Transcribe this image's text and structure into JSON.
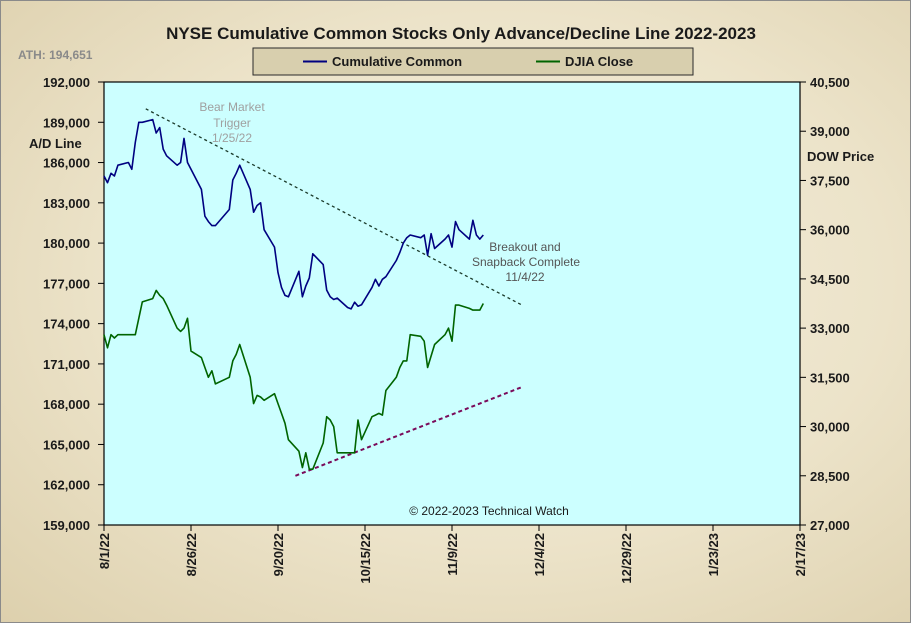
{
  "chart_data": {
    "type": "line",
    "title": "NYSE Cumulative  Common Stocks Only Advance/Decline  Line 2022-2023",
    "ath_label": "ATH: 194,651",
    "left_axis_label": [
      "A/D Line"
    ],
    "right_axis_label": "DOW Price",
    "copyright": "© 2022-2023  Technical Watch",
    "legend": {
      "placement": "top-center"
    },
    "x_ticks": [
      "8/1/22",
      "8/26/22",
      "9/20/22",
      "10/15/22",
      "11/9/22",
      "12/4/22",
      "12/29/22",
      "1/23/23",
      "2/17/23"
    ],
    "x_range": [
      "2022-08-01",
      "2023-02-17"
    ],
    "y_left_ticks": [
      "159,000",
      "162,000",
      "165,000",
      "168,000",
      "171,000",
      "174,000",
      "177,000",
      "180,000",
      "183,000",
      "186,000",
      "189,000",
      "192,000"
    ],
    "y_left_range": [
      159000,
      192000
    ],
    "y_right_ticks": [
      "27,000",
      "28,500",
      "30,000",
      "31,500",
      "33,000",
      "34,500",
      "36,000",
      "37,500",
      "39,000",
      "40,500"
    ],
    "y_right_range": [
      27000,
      40500
    ],
    "series": [
      {
        "name": "Cumulative Common",
        "axis": "left",
        "color": "#000080",
        "x": [
          "2022-08-01",
          "2022-08-02",
          "2022-08-03",
          "2022-08-04",
          "2022-08-05",
          "2022-08-08",
          "2022-08-09",
          "2022-08-10",
          "2022-08-11",
          "2022-08-12",
          "2022-08-15",
          "2022-08-16",
          "2022-08-17",
          "2022-08-18",
          "2022-08-19",
          "2022-08-22",
          "2022-08-23",
          "2022-08-24",
          "2022-08-25",
          "2022-08-26",
          "2022-08-29",
          "2022-08-30",
          "2022-08-31",
          "2022-09-01",
          "2022-09-02",
          "2022-09-06",
          "2022-09-07",
          "2022-09-08",
          "2022-09-09",
          "2022-09-12",
          "2022-09-13",
          "2022-09-14",
          "2022-09-15",
          "2022-09-16",
          "2022-09-19",
          "2022-09-20",
          "2022-09-21",
          "2022-09-22",
          "2022-09-23",
          "2022-09-26",
          "2022-09-27",
          "2022-09-28",
          "2022-09-29",
          "2022-09-30",
          "2022-10-03",
          "2022-10-04",
          "2022-10-05",
          "2022-10-06",
          "2022-10-07",
          "2022-10-10",
          "2022-10-11",
          "2022-10-12",
          "2022-10-13",
          "2022-10-14",
          "2022-10-17",
          "2022-10-18",
          "2022-10-19",
          "2022-10-20",
          "2022-10-21",
          "2022-10-24",
          "2022-10-25",
          "2022-10-26",
          "2022-10-27",
          "2022-10-28",
          "2022-10-31",
          "2022-11-01",
          "2022-11-02",
          "2022-11-03",
          "2022-11-04",
          "2022-11-07",
          "2022-11-08",
          "2022-11-09",
          "2022-11-10",
          "2022-11-11",
          "2022-11-14",
          "2022-11-15",
          "2022-11-16",
          "2022-11-17",
          "2022-11-18"
        ],
        "values": [
          185000,
          184500,
          185200,
          185000,
          185800,
          186000,
          185500,
          187500,
          189000,
          189000,
          189200,
          188200,
          188600,
          187000,
          186500,
          185800,
          186000,
          187800,
          186000,
          185500,
          184000,
          182000,
          181600,
          181300,
          181300,
          182500,
          184700,
          185200,
          185800,
          184000,
          182300,
          182800,
          183000,
          181000,
          179700,
          177800,
          176700,
          176100,
          176000,
          177900,
          176000,
          176800,
          177400,
          179200,
          178400,
          176500,
          176000,
          175800,
          175900,
          175200,
          175100,
          175600,
          175300,
          175400,
          176700,
          177300,
          176800,
          177300,
          177500,
          178700,
          179300,
          180000,
          180400,
          180600,
          180400,
          180600,
          179100,
          180700,
          179600,
          180300,
          180600,
          179700,
          181600,
          181000,
          180300,
          181700,
          180600,
          180300,
          180600
        ]
      },
      {
        "name": "DJIA Close",
        "axis": "right",
        "color": "#006400",
        "x": [
          "2022-08-01",
          "2022-08-02",
          "2022-08-03",
          "2022-08-04",
          "2022-08-05",
          "2022-08-08",
          "2022-08-09",
          "2022-08-10",
          "2022-08-11",
          "2022-08-12",
          "2022-08-15",
          "2022-08-16",
          "2022-08-17",
          "2022-08-18",
          "2022-08-19",
          "2022-08-22",
          "2022-08-23",
          "2022-08-24",
          "2022-08-25",
          "2022-08-26",
          "2022-08-29",
          "2022-08-30",
          "2022-08-31",
          "2022-09-01",
          "2022-09-02",
          "2022-09-06",
          "2022-09-07",
          "2022-09-08",
          "2022-09-09",
          "2022-09-12",
          "2022-09-13",
          "2022-09-14",
          "2022-09-15",
          "2022-09-16",
          "2022-09-19",
          "2022-09-20",
          "2022-09-21",
          "2022-09-22",
          "2022-09-23",
          "2022-09-26",
          "2022-09-27",
          "2022-09-28",
          "2022-09-29",
          "2022-09-30",
          "2022-10-03",
          "2022-10-04",
          "2022-10-05",
          "2022-10-06",
          "2022-10-07",
          "2022-10-10",
          "2022-10-11",
          "2022-10-12",
          "2022-10-13",
          "2022-10-14",
          "2022-10-17",
          "2022-10-18",
          "2022-10-19",
          "2022-10-20",
          "2022-10-21",
          "2022-10-24",
          "2022-10-25",
          "2022-10-26",
          "2022-10-27",
          "2022-10-28",
          "2022-10-31",
          "2022-11-01",
          "2022-11-02",
          "2022-11-03",
          "2022-11-04",
          "2022-11-07",
          "2022-11-08",
          "2022-11-09",
          "2022-11-10",
          "2022-11-11",
          "2022-11-14",
          "2022-11-15",
          "2022-11-16",
          "2022-11-17",
          "2022-11-18"
        ],
        "values": [
          32800,
          32400,
          32800,
          32700,
          32800,
          32800,
          32800,
          32800,
          33300,
          33800,
          33900,
          34150,
          34000,
          33900,
          33700,
          33000,
          32900,
          33000,
          33300,
          32300,
          32100,
          31800,
          31500,
          31700,
          31300,
          31500,
          32000,
          32200,
          32500,
          31500,
          30700,
          30950,
          30900,
          30800,
          31000,
          30700,
          30400,
          30100,
          29600,
          29250,
          28750,
          29200,
          28700,
          28700,
          29500,
          30300,
          30200,
          30000,
          29200,
          29200,
          29200,
          29200,
          30200,
          29600,
          30300,
          30350,
          30400,
          30350,
          31100,
          31500,
          31800,
          32000,
          32000,
          32800,
          32750,
          32600,
          31800,
          32150,
          32500,
          32800,
          33000,
          32600,
          33700,
          33700,
          33600,
          33550,
          33550,
          33550,
          33750
        ]
      }
    ],
    "annotations": [
      {
        "text": [
          "Bear Market",
          "Trigger",
          "1/25/22"
        ],
        "color": "#a0a0a0"
      },
      {
        "text": [
          "Breakout and",
          "Snapback Complete",
          "11/4/22"
        ],
        "color": "#555555"
      }
    ],
    "trendlines": [
      {
        "name": "resistance",
        "axis": "left",
        "color": "#1a3a2a",
        "style": "dashed",
        "x": [
          "2022-08-13",
          "2022-11-29"
        ],
        "values": [
          190000,
          175400
        ]
      },
      {
        "name": "support",
        "axis": "right",
        "color": "#7a0a5a",
        "style": "dashed",
        "x": [
          "2022-09-25",
          "2022-11-29"
        ],
        "values": [
          28500,
          31200
        ]
      }
    ],
    "grid": false,
    "plot_background": "#ccffff"
  }
}
